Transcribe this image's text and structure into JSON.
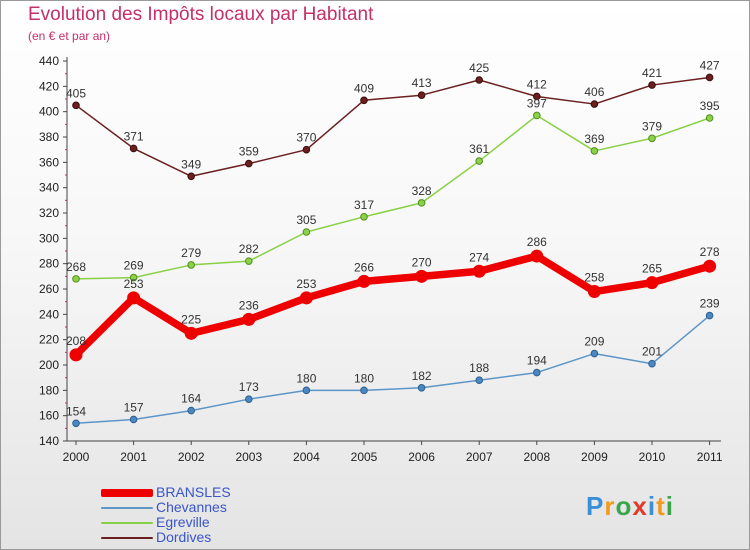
{
  "header": {
    "title": "Evolution des Impôts locaux par Habitant",
    "subtitle": "(en € et par an)"
  },
  "chart_data": {
    "type": "line",
    "title": "Evolution des Impôts locaux par Habitant",
    "subtitle": "(en € et par an)",
    "xlabel": "",
    "ylabel": "",
    "x": [
      "2000",
      "2001",
      "2002",
      "2003",
      "2004",
      "2005",
      "2006",
      "2007",
      "2008",
      "2009",
      "2010",
      "2011"
    ],
    "ylim": [
      140,
      440
    ],
    "ytick_step": 20,
    "grid": false,
    "legend_position": "bottom-left",
    "series": [
      {
        "name": "BRANSLES",
        "color": "#ee0000",
        "values": [
          208,
          253,
          225,
          236,
          253,
          266,
          270,
          274,
          286,
          258,
          265,
          278
        ]
      },
      {
        "name": "Chevannes",
        "color": "#5d95c6",
        "values": [
          154,
          157,
          164,
          173,
          180,
          180,
          182,
          188,
          194,
          209,
          201,
          239
        ]
      },
      {
        "name": "Egreville",
        "color": "#88d044",
        "values": [
          268,
          269,
          279,
          282,
          305,
          317,
          328,
          361,
          397,
          369,
          379,
          395
        ]
      },
      {
        "name": "Dordives",
        "color": "#6b1f1f",
        "values": [
          405,
          371,
          349,
          359,
          370,
          409,
          413,
          425,
          412,
          406,
          421,
          427
        ]
      }
    ]
  },
  "legend": {
    "items": [
      {
        "label": "BRANSLES",
        "color": "#ee0000"
      },
      {
        "label": "Chevannes",
        "color": "#5d95c6"
      },
      {
        "label": "Egreville",
        "color": "#88d044"
      },
      {
        "label": "Dordives",
        "color": "#6b1f1f"
      }
    ]
  },
  "logo": {
    "letters": [
      "P",
      "r",
      "o",
      "x",
      "i",
      "t",
      "i"
    ],
    "colors": [
      "#3a8fd6",
      "#f09a1e",
      "#3aa64a",
      "#e03a2a",
      "#3a8fd6",
      "#f09a1e",
      "#3aa64a"
    ]
  }
}
